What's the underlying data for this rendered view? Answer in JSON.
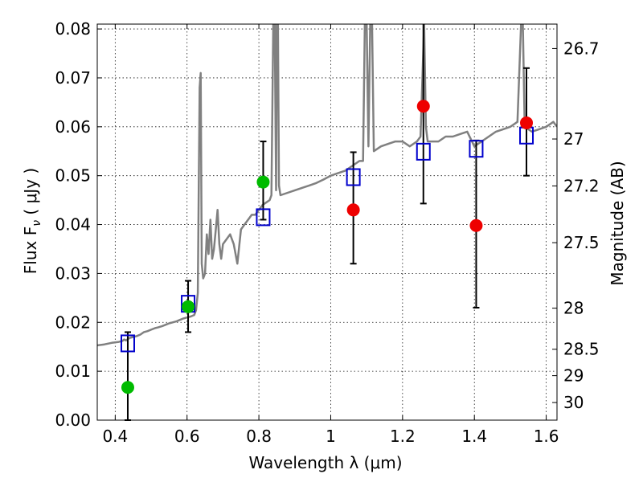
{
  "chart_data": {
    "type": "scatter",
    "xlabel": "Wavelength  λ (μm)",
    "ylabel": "Flux  F",
    "ylabel_sub": "ν",
    "ylabel_unit": "  ( μJy )",
    "ylabel_right": "Magnitude (AB)",
    "xlim": [
      0.35,
      1.63
    ],
    "ylim": [
      0.0,
      0.081
    ],
    "grid": true,
    "x_ticks": [
      {
        "value": 0.4,
        "label": "0.4"
      },
      {
        "value": 0.6,
        "label": "0.6"
      },
      {
        "value": 0.8,
        "label": "0.8"
      },
      {
        "value": 1.0,
        "label": "1"
      },
      {
        "value": 1.2,
        "label": "1.2"
      },
      {
        "value": 1.4,
        "label": "1.4"
      },
      {
        "value": 1.6,
        "label": "1.6"
      }
    ],
    "y_ticks": [
      {
        "value": 0.0,
        "label": "0.00"
      },
      {
        "value": 0.01,
        "label": "0.01"
      },
      {
        "value": 0.02,
        "label": "0.02"
      },
      {
        "value": 0.03,
        "label": "0.03"
      },
      {
        "value": 0.04,
        "label": "0.04"
      },
      {
        "value": 0.05,
        "label": "0.05"
      },
      {
        "value": 0.06,
        "label": "0.06"
      },
      {
        "value": 0.07,
        "label": "0.07"
      },
      {
        "value": 0.08,
        "label": "0.08"
      }
    ],
    "right_ticks": [
      {
        "flux": 0.076,
        "label": "26.7"
      },
      {
        "flux": 0.0575,
        "label": "27"
      },
      {
        "flux": 0.0479,
        "label": "27.2"
      },
      {
        "flux": 0.0363,
        "label": "27.5"
      },
      {
        "flux": 0.0229,
        "label": "28"
      },
      {
        "flux": 0.0145,
        "label": "28.5"
      },
      {
        "flux": 0.0091,
        "label": "29"
      },
      {
        "flux": 0.0036,
        "label": "30"
      }
    ],
    "series": [
      {
        "kind": "spectrum",
        "color": "#808080",
        "points": [
          [
            0.35,
            0.0153
          ],
          [
            0.37,
            0.0155
          ],
          [
            0.39,
            0.0158
          ],
          [
            0.41,
            0.016
          ],
          [
            0.42,
            0.0162
          ],
          [
            0.425,
            0.0165
          ],
          [
            0.43,
            0.0163
          ],
          [
            0.44,
            0.0168
          ],
          [
            0.45,
            0.017
          ],
          [
            0.46,
            0.0172
          ],
          [
            0.47,
            0.0175
          ],
          [
            0.48,
            0.018
          ],
          [
            0.49,
            0.0182
          ],
          [
            0.5,
            0.0185
          ],
          [
            0.51,
            0.0188
          ],
          [
            0.52,
            0.019
          ],
          [
            0.53,
            0.0192
          ],
          [
            0.54,
            0.0195
          ],
          [
            0.55,
            0.0198
          ],
          [
            0.56,
            0.02
          ],
          [
            0.57,
            0.0202
          ],
          [
            0.58,
            0.0205
          ],
          [
            0.59,
            0.0208
          ],
          [
            0.6,
            0.021
          ],
          [
            0.61,
            0.0212
          ],
          [
            0.62,
            0.0215
          ],
          [
            0.625,
            0.0225
          ],
          [
            0.63,
            0.026
          ],
          [
            0.635,
            0.068
          ],
          [
            0.638,
            0.071
          ],
          [
            0.641,
            0.032
          ],
          [
            0.645,
            0.029
          ],
          [
            0.65,
            0.03
          ],
          [
            0.655,
            0.038
          ],
          [
            0.66,
            0.034
          ],
          [
            0.665,
            0.041
          ],
          [
            0.67,
            0.033
          ],
          [
            0.675,
            0.035
          ],
          [
            0.68,
            0.039
          ],
          [
            0.685,
            0.043
          ],
          [
            0.69,
            0.036
          ],
          [
            0.695,
            0.033
          ],
          [
            0.7,
            0.036
          ],
          [
            0.71,
            0.037
          ],
          [
            0.72,
            0.038
          ],
          [
            0.73,
            0.036
          ],
          [
            0.74,
            0.032
          ],
          [
            0.75,
            0.039
          ],
          [
            0.76,
            0.04
          ],
          [
            0.77,
            0.041
          ],
          [
            0.78,
            0.042
          ],
          [
            0.79,
            0.042
          ],
          [
            0.8,
            0.043
          ],
          [
            0.81,
            0.044
          ],
          [
            0.82,
            0.0445
          ],
          [
            0.83,
            0.045
          ],
          [
            0.835,
            0.046
          ],
          [
            0.84,
            0.081
          ],
          [
            0.844,
            0.081
          ],
          [
            0.848,
            0.047
          ],
          [
            0.85,
            0.081
          ],
          [
            0.853,
            0.081
          ],
          [
            0.856,
            0.048
          ],
          [
            0.86,
            0.046
          ],
          [
            0.88,
            0.0465
          ],
          [
            0.9,
            0.047
          ],
          [
            0.92,
            0.0475
          ],
          [
            0.94,
            0.048
          ],
          [
            0.96,
            0.0485
          ],
          [
            0.98,
            0.0492
          ],
          [
            1.0,
            0.05
          ],
          [
            1.02,
            0.0505
          ],
          [
            1.04,
            0.051
          ],
          [
            1.06,
            0.052
          ],
          [
            1.08,
            0.053
          ],
          [
            1.09,
            0.053
          ],
          [
            1.095,
            0.081
          ],
          [
            1.1,
            0.081
          ],
          [
            1.105,
            0.056
          ],
          [
            1.11,
            0.081
          ],
          [
            1.115,
            0.081
          ],
          [
            1.12,
            0.055
          ],
          [
            1.14,
            0.056
          ],
          [
            1.16,
            0.0565
          ],
          [
            1.18,
            0.057
          ],
          [
            1.2,
            0.057
          ],
          [
            1.22,
            0.056
          ],
          [
            1.24,
            0.057
          ],
          [
            1.25,
            0.058
          ],
          [
            1.26,
            0.081
          ],
          [
            1.265,
            0.06
          ],
          [
            1.27,
            0.057
          ],
          [
            1.3,
            0.057
          ],
          [
            1.32,
            0.058
          ],
          [
            1.34,
            0.058
          ],
          [
            1.36,
            0.0585
          ],
          [
            1.38,
            0.059
          ],
          [
            1.4,
            0.056
          ],
          [
            1.42,
            0.057
          ],
          [
            1.44,
            0.058
          ],
          [
            1.46,
            0.059
          ],
          [
            1.48,
            0.0595
          ],
          [
            1.5,
            0.06
          ],
          [
            1.52,
            0.061
          ],
          [
            1.53,
            0.081
          ],
          [
            1.535,
            0.081
          ],
          [
            1.54,
            0.06
          ],
          [
            1.56,
            0.059
          ],
          [
            1.58,
            0.0595
          ],
          [
            1.6,
            0.06
          ],
          [
            1.62,
            0.061
          ],
          [
            1.63,
            0.06
          ]
        ]
      },
      {
        "kind": "model",
        "color": "#0000cc",
        "points": [
          [
            0.435,
            0.0157
          ],
          [
            0.603,
            0.0238
          ],
          [
            0.812,
            0.0415
          ],
          [
            1.063,
            0.0497
          ],
          [
            1.258,
            0.0549
          ],
          [
            1.405,
            0.0555
          ],
          [
            1.545,
            0.0582
          ]
        ]
      },
      {
        "kind": "observed",
        "color": "#00bb00",
        "points": [
          [
            0.435,
            0.0067
          ],
          [
            0.603,
            0.0232
          ],
          [
            0.812,
            0.0487
          ]
        ]
      },
      {
        "kind": "observed",
        "color": "#ee0000",
        "points": [
          [
            1.063,
            0.043
          ],
          [
            1.258,
            0.0642
          ],
          [
            1.405,
            0.0398
          ],
          [
            1.545,
            0.0608
          ]
        ]
      }
    ],
    "error_bars": [
      {
        "x": 0.435,
        "low": 0.0,
        "high": 0.018
      },
      {
        "x": 0.603,
        "low": 0.018,
        "high": 0.0285
      },
      {
        "x": 0.812,
        "low": 0.041,
        "high": 0.057
      },
      {
        "x": 1.063,
        "low": 0.032,
        "high": 0.0548
      },
      {
        "x": 1.258,
        "low": 0.0443,
        "high": 0.081
      },
      {
        "x": 1.405,
        "low": 0.023,
        "high": 0.0572
      },
      {
        "x": 1.545,
        "low": 0.05,
        "high": 0.072
      }
    ]
  }
}
